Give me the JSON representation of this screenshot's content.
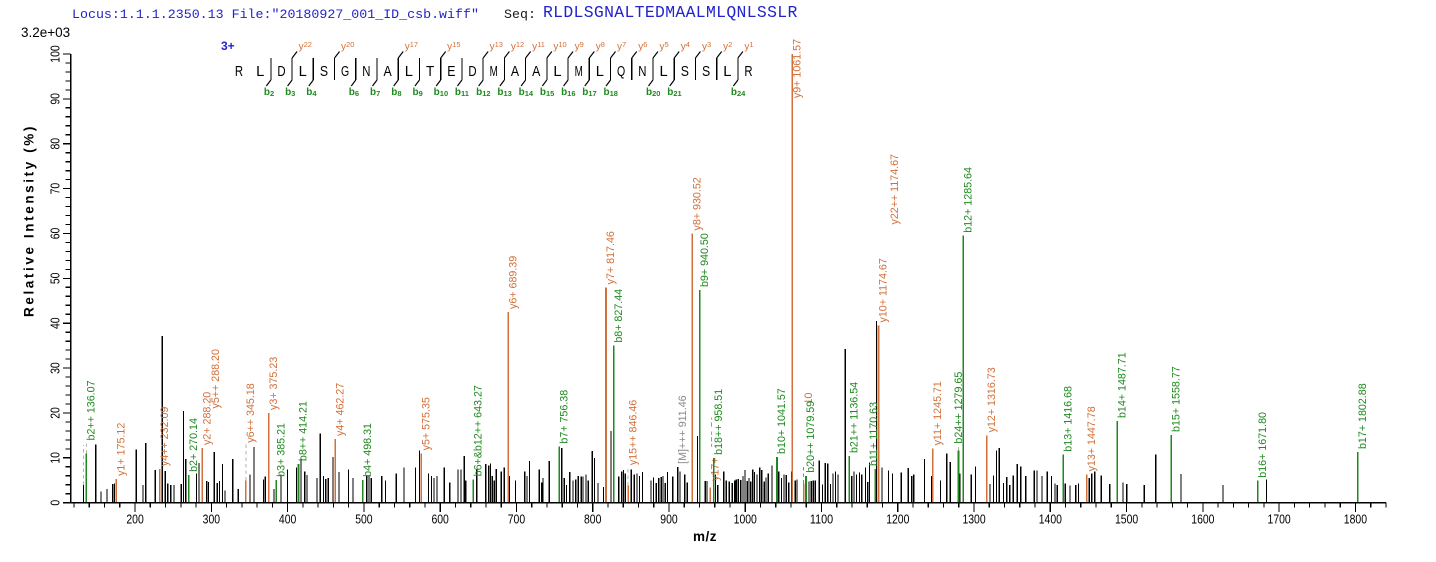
{
  "header": {
    "locus_file": "Locus:1.1.1.2350.13 File:\"20180927_001_ID_csb.wiff\"",
    "seq_label": "Seq:",
    "sequence": "RLDLSGNALTEDMAALMLQNLSSLR"
  },
  "chart_data": {
    "type": "ms2-peptide-fragmentation-spectrum",
    "base_peak_intensity": "3.2e+03",
    "precursor_charge": "3+",
    "xlabel": "m/z",
    "ylabel": "Relative  Intensity (%)",
    "x_axis": {
      "min": 115.5,
      "max": 1840,
      "minor_step": 20,
      "major_ticks": [
        200,
        300,
        400,
        500,
        600,
        700,
        800,
        900,
        1000,
        1100,
        1200,
        1300,
        1400,
        1500,
        1600,
        1700,
        1800
      ]
    },
    "y_axis": {
      "min": 0,
      "max": 100,
      "minor_step": 2,
      "major_ticks": [
        0,
        10,
        20,
        30,
        40,
        50,
        60,
        70,
        80,
        90,
        100
      ]
    },
    "peptide_ladder": {
      "sequence": "RLDLSGNALTEDMAALMLQNLSSLR",
      "junctions": [
        {
          "after": 2,
          "b": "b2"
        },
        {
          "after": 3,
          "b": "b3",
          "y": "y22"
        },
        {
          "after": 4,
          "b": "b4"
        },
        {
          "after": 5,
          "y": "y20"
        },
        {
          "after": 6,
          "b": "b6"
        },
        {
          "after": 7,
          "b": "b7"
        },
        {
          "after": 8,
          "b": "b8",
          "y": "y17"
        },
        {
          "after": 9,
          "b": "b9"
        },
        {
          "after": 10,
          "b": "b10",
          "y": "y15"
        },
        {
          "after": 11,
          "b": "b11"
        },
        {
          "after": 12,
          "b": "b12",
          "y": "y13"
        },
        {
          "after": 13,
          "b": "b13",
          "y": "y12"
        },
        {
          "after": 14,
          "b": "b14",
          "y": "y11"
        },
        {
          "after": 15,
          "b": "b15",
          "y": "y10"
        },
        {
          "after": 16,
          "b": "b16",
          "y": "y9"
        },
        {
          "after": 17,
          "b": "b17",
          "y": "y8"
        },
        {
          "after": 18,
          "b": "b18",
          "y": "y7"
        },
        {
          "after": 19,
          "y": "y6"
        },
        {
          "after": 20,
          "b": "b20",
          "y": "y5"
        },
        {
          "after": 21,
          "b": "b21",
          "y": "y4"
        },
        {
          "after": 22,
          "y": "y3"
        },
        {
          "after": 23,
          "y": "y2"
        },
        {
          "after": 24,
          "b": "b24",
          "y": "y1"
        }
      ]
    },
    "annotated_peaks": [
      {
        "label": "b2++ 136.07",
        "mz": 136.07,
        "pct": 11.0,
        "series": "b",
        "text_from": 13.2,
        "dash_above": true
      },
      {
        "label": "y1+ 175.12",
        "mz": 175.12,
        "pct": 5.3,
        "series": "y"
      },
      {
        "label": "y4++ 232.09",
        "mz": 232.09,
        "pct": 7.5,
        "series": "y"
      },
      {
        "label": "b2+ 270.14",
        "mz": 270.14,
        "pct": 6.2,
        "series": "b"
      },
      {
        "label": "y2+ 288.20",
        "mz": 288.2,
        "pct": 12.2,
        "series": "y"
      },
      {
        "label": "y6++ 345.18",
        "mz": 345.18,
        "pct": 4.9,
        "series": "y",
        "text_from": 12.7,
        "dash_above": true
      },
      {
        "label": "y3+ 375.23",
        "mz": 375.23,
        "pct": 20.0,
        "series": "y"
      },
      {
        "label": "b3+ 385.21",
        "mz": 385.21,
        "pct": 5.1,
        "series": "b"
      },
      {
        "label": "b8++ 414.21",
        "mz": 414.21,
        "pct": 8.6,
        "series": "b"
      },
      {
        "label": "y4+ 462.27",
        "mz": 462.27,
        "pct": 14.2,
        "series": "y"
      },
      {
        "label": "b4+ 498.31",
        "mz": 498.31,
        "pct": 5.1,
        "series": "b"
      },
      {
        "label": "y5+ 575.35",
        "mz": 575.35,
        "pct": 11.0,
        "series": "y"
      },
      {
        "label": "b6+&b12++ 643.27",
        "mz": 643.27,
        "pct": 5.2,
        "series": "b"
      },
      {
        "label": "y6+ 689.39",
        "mz": 689.39,
        "pct": 42.5,
        "series": "y"
      },
      {
        "label": "b7+ 756.38",
        "mz": 756.38,
        "pct": 12.5,
        "series": "b"
      },
      {
        "label": "y7+ 817.46",
        "mz": 817.46,
        "pct": 48.0,
        "series": "y"
      },
      {
        "label": "b8+ 827.44",
        "mz": 827.44,
        "pct": 35.0,
        "series": "b"
      },
      {
        "label": "y15++ 846.46",
        "mz": 846.46,
        "pct": 3.8,
        "series": "y",
        "text_from": 7.7,
        "dash_above": true
      },
      {
        "label": "[M]+++ 911.46",
        "mz": 911.46,
        "pct": 8.0,
        "series": "M"
      },
      {
        "label": "y8+ 930.52",
        "mz": 930.52,
        "pct": 60.0,
        "series": "y"
      },
      {
        "label": "b9+ 940.50",
        "mz": 940.5,
        "pct": 47.4,
        "series": "b"
      },
      {
        "label": "y17++ 958.51",
        "mz": 954.0,
        "pct": 3.4,
        "series": "y",
        "text_from": 4.2
      },
      {
        "label": "b18++ 958.51",
        "mz": 958.51,
        "pct": 10.0,
        "series": "b",
        "label_bg": true
      },
      {
        "label": "b10+ 1041.57",
        "mz": 1041.57,
        "pct": 10.2,
        "series": "b"
      },
      {
        "label": "y9+ 1061.57",
        "mz": 1061.57,
        "pct": 100.0,
        "series": "y",
        "text_from": 89.5
      },
      {
        "label": "y20++ 1080.10",
        "mz": 1076.5,
        "pct": 4.3,
        "series": "y",
        "text_from": 8.0,
        "dash_above": true,
        "dash_color": "y"
      },
      {
        "label": "b20++ 1079.59",
        "mz": 1079.59,
        "pct": 6.0,
        "series": "b",
        "label_bg": true
      },
      {
        "label": "b21++ 1136.54",
        "mz": 1136.54,
        "pct": 10.4,
        "series": "b"
      },
      {
        "label": "b11+ 1170.63",
        "mz": 1170.63,
        "pct": 7.5,
        "series": "b",
        "label_dx": -6.5
      },
      {
        "label": "y10+ 1174.67",
        "mz": 1174.67,
        "pct": 39.5,
        "series": "y"
      },
      {
        "label": "y11+ 1245.71",
        "mz": 1245.71,
        "pct": 12.1,
        "series": "y"
      },
      {
        "label": "b24++ 1279.65",
        "mz": 1279.65,
        "pct": 11.6,
        "series": "b",
        "text_from": 12.5,
        "dash_above": true,
        "label_dx": -4.5
      },
      {
        "label": "b12+ 1285.64",
        "mz": 1285.64,
        "pct": 59.5,
        "series": "b"
      },
      {
        "label": "y12+ 1316.73",
        "mz": 1316.73,
        "pct": 15.0,
        "series": "y"
      },
      {
        "label": "b13+ 1416.68",
        "mz": 1416.68,
        "pct": 10.7,
        "series": "b"
      },
      {
        "label": "y13+ 1447.78",
        "mz": 1447.78,
        "pct": 6.3,
        "series": "y"
      },
      {
        "label": "b14+ 1487.71",
        "mz": 1487.71,
        "pct": 18.2,
        "series": "b"
      },
      {
        "label": "b15+ 1558.77",
        "mz": 1558.77,
        "pct": 15.1,
        "series": "b"
      },
      {
        "label": "b16+ 1671.80",
        "mz": 1671.8,
        "pct": 4.9,
        "series": "b"
      },
      {
        "label": "b17+ 1802.88",
        "mz": 1802.88,
        "pct": 11.3,
        "series": "b"
      }
    ],
    "extra_label_columns": [
      {
        "text": "y5++ 288.20",
        "series": "y",
        "mz": 288.2,
        "dx": 8.5,
        "from_pct": 21.0
      },
      {
        "text": "y22++ 1174.67",
        "series": "y",
        "mz": 1174.67,
        "dx": 11.5,
        "from_pct": 62.0
      }
    ],
    "dashed_guides": [
      {
        "mz": 132.3,
        "solid_pct": 3.9,
        "dash_to": 12.9
      }
    ],
    "background_peaks": [
      [
        148.5,
        13.0
      ],
      [
        155.3,
        2.5
      ],
      [
        163.2,
        3.0
      ],
      [
        170.7,
        4.2
      ],
      [
        172.9,
        4.3
      ],
      [
        201.4,
        11.9
      ],
      [
        210.5,
        4.0
      ],
      [
        214.0,
        13.3
      ],
      [
        226.6,
        7.3
      ],
      [
        235.7,
        37.2
      ],
      [
        239.6,
        7.1
      ],
      [
        242.8,
        4.3
      ],
      [
        246.8,
        4.0
      ],
      [
        250.9,
        3.9
      ],
      [
        260.4,
        4.2
      ],
      [
        263.5,
        20.4
      ],
      [
        266.6,
        9.7
      ],
      [
        280.5,
        6.5
      ],
      [
        283.7,
        8.9
      ],
      [
        294.0,
        4.8
      ],
      [
        296.3,
        4.6
      ],
      [
        303.6,
        11.3
      ],
      [
        307.7,
        4.4
      ],
      [
        310.8,
        4.8
      ],
      [
        314.6,
        8.6
      ],
      [
        317.8,
        2.7
      ],
      [
        327.9,
        9.7
      ],
      [
        335.1,
        3.0
      ],
      [
        350.6,
        6.3
      ],
      [
        355.8,
        12.4
      ],
      [
        368.3,
        5.2
      ],
      [
        370.7,
        5.8
      ],
      [
        382.1,
        3.0
      ],
      [
        391.4,
        6.3
      ],
      [
        399.7,
        7.4
      ],
      [
        411.5,
        7.8
      ],
      [
        417.5,
        9.9
      ],
      [
        422.5,
        6.9
      ],
      [
        425.5,
        6.2
      ],
      [
        438.4,
        5.5
      ],
      [
        442.8,
        15.4
      ],
      [
        446.9,
        5.9
      ],
      [
        450.0,
        5.3
      ],
      [
        453.2,
        5.5
      ],
      [
        459.5,
        10.2
      ],
      [
        467.3,
        6.8
      ],
      [
        479.9,
        7.4
      ],
      [
        485.7,
        5.5
      ],
      [
        503.7,
        5.9
      ],
      [
        506.8,
        6.1
      ],
      [
        509.8,
        5.5
      ],
      [
        523.5,
        5.9
      ],
      [
        528.3,
        5.0
      ],
      [
        542.4,
        6.5
      ],
      [
        552.7,
        7.8
      ],
      [
        567.6,
        7.9
      ],
      [
        572.8,
        11.6
      ],
      [
        584.8,
        6.5
      ],
      [
        588.6,
        6.0
      ],
      [
        591.8,
        5.5
      ],
      [
        595.8,
        5.9
      ],
      [
        605.3,
        7.8
      ],
      [
        612.6,
        4.5
      ],
      [
        623.4,
        7.4
      ],
      [
        627.4,
        7.4
      ],
      [
        631.4,
        10.4
      ],
      [
        633.7,
        5.0
      ],
      [
        647.8,
        7.4
      ],
      [
        659.7,
        8.6
      ],
      [
        663.5,
        8.3
      ],
      [
        666.1,
        8.7
      ],
      [
        668.2,
        6.0
      ],
      [
        670.9,
        5.0
      ],
      [
        673.6,
        7.5
      ],
      [
        679.9,
        7.0
      ],
      [
        684.0,
        7.9
      ],
      [
        690.9,
        6.0
      ],
      [
        698.8,
        5.0
      ],
      [
        710.9,
        7.0
      ],
      [
        713.9,
        6.0
      ],
      [
        717.2,
        9.3
      ],
      [
        730.0,
        7.4
      ],
      [
        733.1,
        4.5
      ],
      [
        734.8,
        5.5
      ],
      [
        743.2,
        9.3
      ],
      [
        759.6,
        12.2
      ],
      [
        762.7,
        5.5
      ],
      [
        765.6,
        4.0
      ],
      [
        770.0,
        6.8
      ],
      [
        774.2,
        5.0
      ],
      [
        777.8,
        5.2
      ],
      [
        781.0,
        6.0
      ],
      [
        784.8,
        5.8
      ],
      [
        787.3,
        5.8
      ],
      [
        791.1,
        6.3
      ],
      [
        794.2,
        5.0
      ],
      [
        799.4,
        11.5
      ],
      [
        802.4,
        10.0
      ],
      [
        807.0,
        4.4
      ],
      [
        814.2,
        3.5
      ],
      [
        824.0,
        16.0
      ],
      [
        834.0,
        5.8
      ],
      [
        838.0,
        6.9
      ],
      [
        840.3,
        7.3
      ],
      [
        842.5,
        6.5
      ],
      [
        850.6,
        7.4
      ],
      [
        854.4,
        6.3
      ],
      [
        858.2,
        6.5
      ],
      [
        861.4,
        6.0
      ],
      [
        865.4,
        6.8
      ],
      [
        876.4,
        5.0
      ],
      [
        879.6,
        5.6
      ],
      [
        883.4,
        4.4
      ],
      [
        886.5,
        5.5
      ],
      [
        889.7,
        5.7
      ],
      [
        892.2,
        6.0
      ],
      [
        895.3,
        4.4
      ],
      [
        898.0,
        6.8
      ],
      [
        904.9,
        5.8
      ],
      [
        914.5,
        7.0
      ],
      [
        920.7,
        6.3
      ],
      [
        923.9,
        4.5
      ],
      [
        937.3,
        14.9
      ],
      [
        947.4,
        4.8
      ],
      [
        949.9,
        4.8
      ],
      [
        960.9,
        6.3
      ],
      [
        964.1,
        4.0
      ],
      [
        971.9,
        6.9
      ],
      [
        975.1,
        5.0
      ],
      [
        978.9,
        4.7
      ],
      [
        983.0,
        4.4
      ],
      [
        986.1,
        5.0
      ],
      [
        988.3,
        5.2
      ],
      [
        990.8,
        5.3
      ],
      [
        994.0,
        5.1
      ],
      [
        997.1,
        6.0
      ],
      [
        999.6,
        7.3
      ],
      [
        1002.8,
        4.8
      ],
      [
        1005.0,
        5.5
      ],
      [
        1007.2,
        4.7
      ],
      [
        1009.7,
        7.4
      ],
      [
        1012.2,
        6.8
      ],
      [
        1015.4,
        6.3
      ],
      [
        1019.2,
        7.9
      ],
      [
        1021.8,
        7.3
      ],
      [
        1024.9,
        4.7
      ],
      [
        1027.2,
        5.6
      ],
      [
        1030.3,
        6.5
      ],
      [
        1035.0,
        8.3
      ],
      [
        1044.0,
        6.9
      ],
      [
        1047.6,
        5.5
      ],
      [
        1050.7,
        6.3
      ],
      [
        1053.9,
        6.2
      ],
      [
        1057.0,
        4.5
      ],
      [
        1061.1,
        7.0
      ],
      [
        1065.5,
        4.9
      ],
      [
        1067.8,
        5.2
      ],
      [
        1083.5,
        4.7
      ],
      [
        1086.7,
        4.8
      ],
      [
        1089.2,
        5.0
      ],
      [
        1091.8,
        5.0
      ],
      [
        1097.0,
        9.4
      ],
      [
        1101.2,
        4.1
      ],
      [
        1105.0,
        8.9
      ],
      [
        1108.2,
        8.7
      ],
      [
        1111.9,
        4.2
      ],
      [
        1115.0,
        6.5
      ],
      [
        1118.2,
        6.9
      ],
      [
        1121.5,
        6.3
      ],
      [
        1131.0,
        34.2
      ],
      [
        1139.6,
        6.0
      ],
      [
        1142.6,
        6.9
      ],
      [
        1145.9,
        6.3
      ],
      [
        1149.7,
        6.7
      ],
      [
        1152.8,
        6.3
      ],
      [
        1157.6,
        7.9
      ],
      [
        1160.7,
        4.6
      ],
      [
        1162.9,
        9.0
      ],
      [
        1172.2,
        40.5
      ],
      [
        1179.2,
        7.9
      ],
      [
        1187.7,
        7.2
      ],
      [
        1193.1,
        6.5
      ],
      [
        1204.5,
        6.7
      ],
      [
        1213.9,
        7.7
      ],
      [
        1218.3,
        6.0
      ],
      [
        1220.9,
        6.3
      ],
      [
        1235.0,
        9.7
      ],
      [
        1244.2,
        6.0
      ],
      [
        1256.1,
        5.0
      ],
      [
        1264.3,
        11.0
      ],
      [
        1268.7,
        9.1
      ],
      [
        1281.3,
        6.5
      ],
      [
        1296.4,
        6.3
      ],
      [
        1301.9,
        8.1
      ],
      [
        1321.0,
        4.2
      ],
      [
        1325.5,
        6.1
      ],
      [
        1329.3,
        11.6
      ],
      [
        1333.1,
        12.2
      ],
      [
        1338.6,
        4.4
      ],
      [
        1342.9,
        5.7
      ],
      [
        1346.9,
        3.9
      ],
      [
        1351.2,
        6.1
      ],
      [
        1356.7,
        8.6
      ],
      [
        1361.2,
        8.1
      ],
      [
        1367.7,
        5.9
      ],
      [
        1379.1,
        7.2
      ],
      [
        1382.4,
        7.2
      ],
      [
        1389.0,
        5.9
      ],
      [
        1396.0,
        7.0
      ],
      [
        1401.6,
        5.9
      ],
      [
        1406.1,
        4.3
      ],
      [
        1409.2,
        4.0
      ],
      [
        1419.6,
        4.3
      ],
      [
        1425.9,
        3.8
      ],
      [
        1433.2,
        4.0
      ],
      [
        1437.0,
        4.3
      ],
      [
        1451.2,
        5.5
      ],
      [
        1454.3,
        6.5
      ],
      [
        1458.4,
        7.0
      ],
      [
        1466.9,
        6.1
      ],
      [
        1477.9,
        4.2
      ],
      [
        1495.2,
        4.5
      ],
      [
        1500.0,
        4.2
      ],
      [
        1523.3,
        3.9
      ],
      [
        1538.1,
        10.7
      ],
      [
        1571.3,
        6.4
      ],
      [
        1626.4,
        4.0
      ],
      [
        1683.4,
        5.2
      ]
    ]
  },
  "colors": {
    "b_series": "#1e8a1e",
    "y_series": "#d2703a",
    "precursor_label": "#8a8a8a",
    "peak_black": "#000000",
    "dash_gray": "#b3b3b3",
    "header_blue": "#2323cc",
    "charge_blue": "#2323cc",
    "axis": "#000000"
  }
}
